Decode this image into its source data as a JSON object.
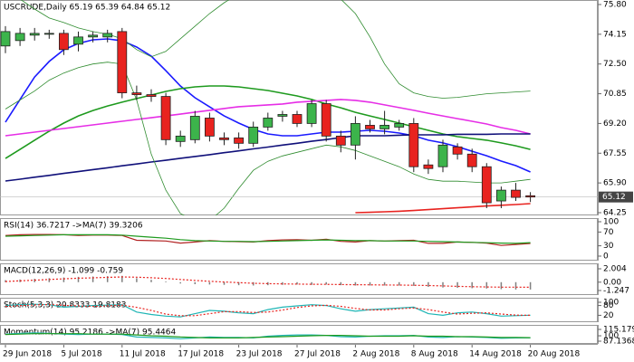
{
  "chart_data": [
    {
      "type": "candlestick",
      "title": "USCRUDE,Daily  65.19 65.39 64.84 65.12",
      "categories": [
        "29 Jun 2018",
        null,
        null,
        null,
        "5 Jul 2018",
        null,
        null,
        null,
        "11 Jul 2018",
        null,
        null,
        null,
        "17 Jul 2018",
        null,
        null,
        null,
        "23 Jul 2018",
        null,
        null,
        null,
        "27 Jul 2018",
        null,
        null,
        null,
        "2 Aug 2018",
        null,
        null,
        null,
        "8 Aug 2018",
        null,
        null,
        null,
        "14 Aug 2018",
        null,
        null,
        null,
        "20 Aug 2018"
      ],
      "open": [
        73.5,
        73.8,
        74.1,
        74.15,
        74.2,
        73.6,
        74.0,
        74.0,
        74.3,
        70.9,
        70.8,
        70.7,
        68.2,
        68.3,
        69.5,
        68.4,
        68.4,
        68.1,
        69.0,
        69.6,
        69.7,
        69.2,
        70.3,
        68.5,
        68.0,
        69.1,
        68.9,
        69.0,
        69.2,
        66.9,
        66.8,
        67.9,
        67.5,
        66.8,
        64.9,
        65.5,
        65.19
      ],
      "high": [
        74.6,
        74.5,
        74.5,
        74.4,
        74.4,
        74.3,
        74.3,
        74.4,
        74.5,
        71.3,
        71.1,
        70.9,
        68.8,
        69.9,
        69.8,
        68.7,
        68.7,
        69.3,
        69.8,
        69.9,
        69.9,
        70.5,
        70.5,
        68.8,
        69.6,
        69.4,
        69.9,
        69.4,
        69.5,
        67.2,
        68.3,
        68.1,
        67.8,
        67.0,
        65.7,
        65.9,
        65.39
      ],
      "low": [
        73.1,
        73.5,
        73.8,
        73.9,
        73.0,
        73.2,
        73.7,
        73.7,
        70.6,
        70.5,
        70.4,
        68.0,
        67.9,
        68.1,
        68.2,
        68.0,
        67.8,
        67.9,
        68.8,
        69.3,
        69.0,
        69.0,
        68.2,
        67.6,
        67.2,
        68.7,
        68.6,
        68.8,
        66.5,
        66.4,
        66.5,
        67.2,
        66.5,
        64.5,
        64.5,
        64.9,
        64.84
      ],
      "close": [
        74.3,
        74.2,
        74.2,
        74.2,
        73.3,
        74.0,
        74.1,
        74.2,
        70.9,
        70.8,
        70.7,
        68.3,
        68.5,
        69.6,
        68.5,
        68.3,
        68.1,
        69.0,
        69.5,
        69.7,
        69.2,
        70.3,
        68.5,
        68.0,
        69.2,
        68.9,
        69.1,
        69.2,
        66.8,
        66.7,
        68.0,
        67.5,
        66.8,
        64.8,
        65.5,
        65.1,
        65.12
      ],
      "up_color": "#3cb44b",
      "down_color": "#e8231f",
      "overlays": [
        {
          "color": "#1a1aff",
          "values": [
            69.27,
            70.53,
            71.78,
            72.64,
            73.29,
            73.64,
            73.84,
            73.89,
            73.79,
            73.44,
            72.94,
            72.13,
            71.28,
            70.63,
            70.12,
            69.62,
            69.22,
            68.87,
            68.62,
            68.52,
            68.52,
            68.62,
            68.72,
            68.72,
            68.77,
            68.82,
            68.77,
            68.67,
            68.52,
            68.27,
            68.12,
            67.91,
            67.66,
            67.41,
            67.11,
            66.86,
            66.51
          ]
        },
        {
          "color": "#1e9a1e",
          "values": [
            67.26,
            67.76,
            68.27,
            68.77,
            69.22,
            69.62,
            69.92,
            70.17,
            70.38,
            70.58,
            70.78,
            70.98,
            71.13,
            71.23,
            71.28,
            71.28,
            71.23,
            71.13,
            71.03,
            70.88,
            70.73,
            70.53,
            70.28,
            70.07,
            69.82,
            69.62,
            69.42,
            69.22,
            69.02,
            68.82,
            68.62,
            68.47,
            68.37,
            68.27,
            68.12,
            67.96,
            67.76
          ]
        },
        {
          "color": "#e62ee6",
          "values": [
            68.52,
            68.62,
            68.72,
            68.82,
            68.92,
            69.02,
            69.12,
            69.22,
            69.32,
            69.42,
            69.52,
            69.62,
            69.72,
            69.83,
            69.93,
            70.03,
            70.13,
            70.18,
            70.23,
            70.28,
            70.38,
            70.43,
            70.48,
            70.53,
            70.48,
            70.38,
            70.23,
            70.08,
            69.93,
            69.77,
            69.62,
            69.47,
            69.32,
            69.17,
            68.97,
            68.82,
            68.62
          ]
        },
        {
          "color": "#10107a",
          "values": [
            66.01,
            66.11,
            66.22,
            66.32,
            66.43,
            66.53,
            66.64,
            66.74,
            66.85,
            66.95,
            67.06,
            67.16,
            67.27,
            67.37,
            67.47,
            67.58,
            67.68,
            67.79,
            67.89,
            68.0,
            68.1,
            68.21,
            68.31,
            68.42,
            68.52,
            68.52,
            68.52,
            68.55,
            68.57,
            68.57,
            68.57,
            68.6,
            68.6,
            68.6,
            68.62,
            68.62,
            68.62
          ]
        },
        {
          "color": "#e8231f",
          "values": [
            null,
            null,
            null,
            null,
            null,
            null,
            null,
            null,
            null,
            null,
            null,
            null,
            null,
            null,
            null,
            null,
            null,
            null,
            null,
            null,
            null,
            null,
            null,
            null,
            64.25,
            64.27,
            64.3,
            64.33,
            64.37,
            64.42,
            64.47,
            64.52,
            64.57,
            64.62,
            64.66,
            64.7,
            64.75
          ]
        },
        {
          "color": "#2e8b2e",
          "thin": true,
          "values": [
            76.8,
            76.1,
            75.55,
            75.05,
            74.8,
            74.5,
            74.3,
            74.15,
            73.9,
            73.3,
            72.9,
            73.2,
            73.9,
            74.6,
            75.3,
            75.9,
            76.4,
            76.7,
            76.9,
            77.0,
            77.0,
            76.9,
            76.6,
            76.1,
            75.3,
            74.0,
            72.5,
            71.4,
            70.9,
            70.7,
            70.6,
            70.65,
            70.75,
            70.85,
            70.9,
            70.95,
            71.0
          ]
        },
        {
          "color": "#2e8b2e",
          "thin": true,
          "values": [
            70.0,
            70.5,
            71.0,
            71.6,
            72.0,
            72.3,
            72.5,
            72.6,
            72.5,
            70.5,
            67.5,
            65.5,
            64.2,
            63.8,
            63.8,
            64.5,
            65.6,
            66.6,
            67.1,
            67.4,
            67.6,
            67.8,
            68.0,
            67.9,
            67.7,
            67.4,
            67.1,
            66.8,
            66.4,
            66.1,
            66.0,
            66.0,
            65.95,
            65.9,
            65.9,
            66.0,
            66.1
          ]
        }
      ],
      "current_price": 65.12,
      "ylim": [
        64.25,
        75.8
      ],
      "yticks": [
        {
          "value": 75.8,
          "label": "75.80"
        },
        74.15,
        {
          "value": 72.5,
          "label": "72.50"
        },
        70.85,
        {
          "value": 69.2,
          "label": "69.20"
        },
        67.55,
        {
          "value": 65.9,
          "label": "65.90"
        },
        64.25
      ]
    },
    {
      "type": "line",
      "title": "RSI(14) 36.7217  ->MA(7) 39.3206",
      "series": [
        {
          "color": "#b22222",
          "values": [
            60,
            62,
            63,
            63,
            62,
            60,
            61,
            61,
            60,
            46,
            45,
            44,
            38,
            41,
            45,
            43,
            42,
            41,
            45,
            47,
            48,
            46,
            49,
            43,
            41,
            45,
            44,
            45,
            46,
            37,
            37,
            41,
            40,
            38,
            31,
            34,
            36.72
          ]
        },
        {
          "color": "#1e9a1e",
          "values": [
            58,
            59,
            60,
            61,
            62,
            62,
            62,
            62,
            61,
            58,
            55,
            52,
            48,
            45,
            44,
            43,
            43,
            42,
            43,
            44,
            45,
            46,
            47,
            46,
            45,
            45,
            44,
            44,
            44,
            43,
            42,
            41,
            40,
            39,
            38,
            37,
            39.32
          ]
        }
      ],
      "ylim": [
        0,
        100
      ],
      "yticks": [
        100,
        70,
        30,
        0
      ]
    },
    {
      "type": "bar",
      "title": "MACD(12,26,9) -1.099 -0.759",
      "color": "#808080",
      "values": [
        0.3,
        0.4,
        0.5,
        0.6,
        0.7,
        0.8,
        0.85,
        0.9,
        0.95,
        0.6,
        0.35,
        0.1,
        -0.2,
        -0.3,
        -0.35,
        -0.4,
        -0.45,
        -0.5,
        -0.45,
        -0.4,
        -0.35,
        -0.4,
        -0.35,
        -0.45,
        -0.5,
        -0.5,
        -0.5,
        -0.5,
        -0.55,
        -0.7,
        -0.8,
        -0.85,
        -0.9,
        -0.95,
        -1.05,
        -1.1,
        -1.099
      ],
      "series": [
        {
          "color": "#e8231f",
          "dashed": true,
          "values": [
            0.1,
            0.2,
            0.3,
            0.4,
            0.5,
            0.6,
            0.65,
            0.72,
            0.78,
            0.74,
            0.66,
            0.55,
            0.4,
            0.26,
            0.14,
            0.03,
            -0.07,
            -0.16,
            -0.22,
            -0.26,
            -0.28,
            -0.31,
            -0.32,
            -0.35,
            -0.38,
            -0.4,
            -0.42,
            -0.44,
            -0.46,
            -0.5,
            -0.56,
            -0.62,
            -0.68,
            -0.72,
            -0.74,
            -0.75,
            -0.759
          ]
        }
      ],
      "ylim": [
        -1.247,
        2.004
      ],
      "yticks": [
        2.004,
        {
          "value": 0,
          "label": "0.00"
        },
        -1.247
      ]
    },
    {
      "type": "line",
      "title": "Stoch(5,3,3) 20.8333 19.8183",
      "series": [
        {
          "color": "#1fb5b5",
          "values": [
            80,
            85,
            88,
            85,
            70,
            75,
            80,
            82,
            85,
            40,
            25,
            15,
            10,
            30,
            50,
            45,
            35,
            30,
            55,
            70,
            78,
            85,
            80,
            60,
            45,
            55,
            60,
            65,
            70,
            30,
            20,
            35,
            40,
            30,
            15,
            18,
            20.83
          ]
        },
        {
          "color": "#e8231f",
          "dashed": true,
          "values": [
            75,
            80,
            84,
            86,
            81,
            77,
            75,
            79,
            82,
            69,
            50,
            27,
            17,
            18,
            30,
            42,
            43,
            37,
            40,
            52,
            68,
            78,
            81,
            75,
            62,
            53,
            53,
            60,
            65,
            55,
            40,
            28,
            32,
            35,
            28,
            21,
            19.82
          ]
        }
      ],
      "ylim": [
        0,
        100
      ],
      "yticks": [
        100,
        80,
        20
      ]
    },
    {
      "type": "line",
      "title": "Momentum(14) 95.2186  ->MA(7) 95.4464",
      "series": [
        {
          "color": "#1fb5b5",
          "values": [
            104,
            106,
            107,
            106,
            104,
            103,
            104,
            104,
            103,
            97,
            96,
            95,
            93,
            95,
            97,
            96,
            96,
            95,
            99,
            101,
            102,
            102,
            101,
            98,
            97,
            99,
            100,
            100,
            101,
            97,
            96,
            98,
            97,
            96,
            94,
            95,
            95.22
          ]
        },
        {
          "color": "#1e9a1e",
          "values": [
            103,
            104,
            105,
            105,
            105,
            105,
            104,
            104,
            104,
            102,
            100,
            99,
            97,
            96,
            95,
            95,
            95,
            96,
            97,
            98,
            99,
            100,
            101,
            101,
            100,
            99,
            99,
            99,
            100,
            99,
            99,
            98,
            98,
            97,
            96,
            96,
            95.45
          ]
        }
      ],
      "ylim": [
        87.1368,
        115.1796
      ],
      "yticks": [
        {
          "value": 115.1796,
          "label": "115.1796"
        },
        100,
        {
          "value": 87.1368,
          "label": "87.1368"
        }
      ]
    }
  ]
}
